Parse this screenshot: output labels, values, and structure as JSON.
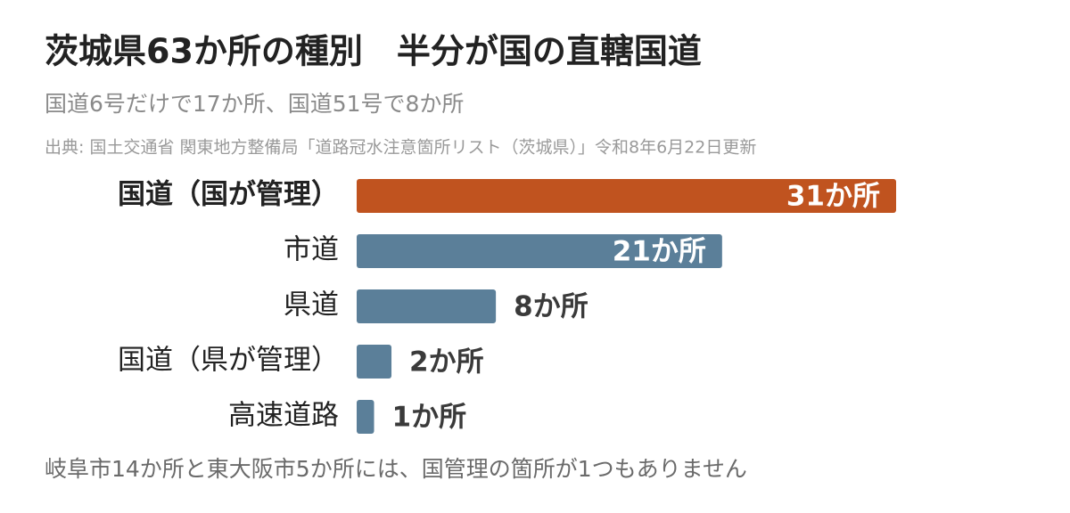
{
  "chart_data": {
    "type": "hbar",
    "title": "茨城県63か所の種別　半分が国の直轄国道",
    "subtitle": "国道6号だけで17か所、国道51号で8か所",
    "source": "出典: 国土交通省 関東地方整備局「道路冠水注意箇所リスト（茨城県）」令和8年6月22日更新",
    "note": "岐阜市14か所と東大阪市5か所には、国管理の箇所が1つもありません",
    "categories": [
      "国道（国が管理）",
      "市道",
      "県道",
      "国道（県が管理）",
      "高速道路"
    ],
    "values": [
      31,
      21,
      8,
      2,
      1
    ],
    "value_labels": [
      "31か所",
      "21か所",
      "8か所",
      "2か所",
      "1か所"
    ],
    "colors": [
      "#c0531f",
      "#5b7f99",
      "#5b7f99",
      "#5b7f99",
      "#5b7f99"
    ]
  }
}
